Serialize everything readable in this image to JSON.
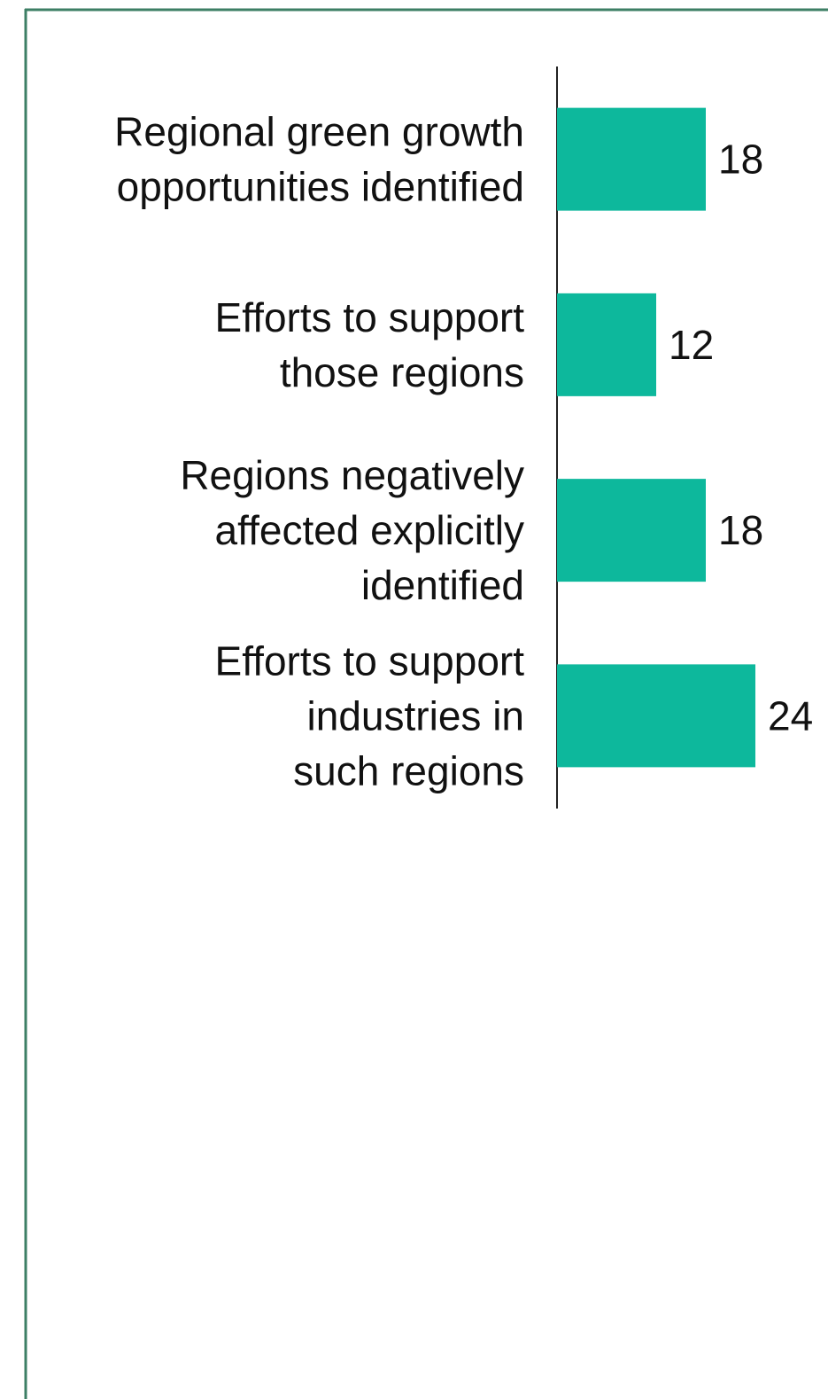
{
  "chart_data": {
    "type": "bar",
    "orientation": "horizontal",
    "categories": [
      "Regional green growth\nopportunities identified",
      "Efforts to support\nthose regions",
      "Regions negatively\naffected explicitly\nidentified",
      "Efforts to support\nindustries in\nsuch regions"
    ],
    "values": [
      18,
      12,
      18,
      24
    ],
    "color": "#0db89c"
  }
}
